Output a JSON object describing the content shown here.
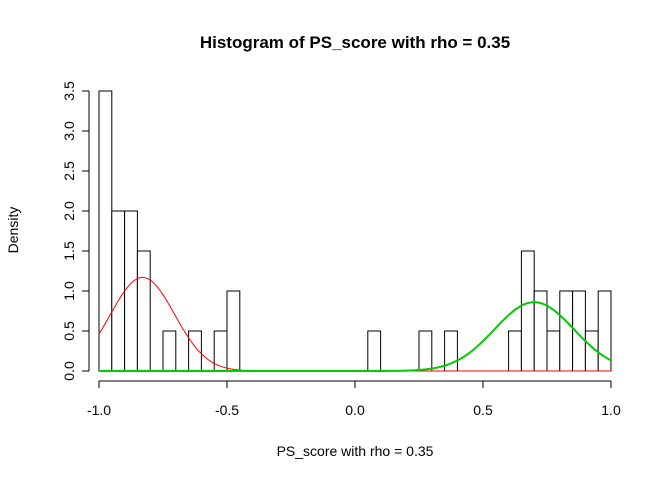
{
  "chart_data": {
    "type": "bar",
    "title": "Histogram of PS_score with rho = 0.35",
    "xlabel": "PS_score with rho = 0.35",
    "ylabel": "Density",
    "xlim": [
      -1.0,
      1.0
    ],
    "ylim": [
      0,
      3.5
    ],
    "x_ticks": [
      -1.0,
      -0.5,
      0.0,
      0.5,
      1.0
    ],
    "x_tick_labels": [
      "-1.0",
      "-0.5",
      "0.0",
      "0.5",
      "1.0"
    ],
    "y_ticks": [
      0.0,
      0.5,
      1.0,
      1.5,
      2.0,
      2.5,
      3.0,
      3.5
    ],
    "y_tick_labels": [
      "0.0",
      "0.5",
      "1.0",
      "1.5",
      "2.0",
      "2.5",
      "3.0",
      "3.5"
    ],
    "bin_width": 0.05,
    "bins": [
      {
        "left": -1.0,
        "right": -0.95,
        "density": 3.5
      },
      {
        "left": -0.95,
        "right": -0.9,
        "density": 2.0
      },
      {
        "left": -0.9,
        "right": -0.85,
        "density": 2.0
      },
      {
        "left": -0.85,
        "right": -0.8,
        "density": 1.5
      },
      {
        "left": -0.75,
        "right": -0.7,
        "density": 0.5
      },
      {
        "left": -0.65,
        "right": -0.6,
        "density": 0.5
      },
      {
        "left": -0.55,
        "right": -0.5,
        "density": 0.5
      },
      {
        "left": -0.5,
        "right": -0.45,
        "density": 1.0
      },
      {
        "left": 0.05,
        "right": 0.1,
        "density": 0.5
      },
      {
        "left": 0.25,
        "right": 0.3,
        "density": 0.5
      },
      {
        "left": 0.35,
        "right": 0.4,
        "density": 0.5
      },
      {
        "left": 0.6,
        "right": 0.65,
        "density": 0.5
      },
      {
        "left": 0.65,
        "right": 0.7,
        "density": 1.5
      },
      {
        "left": 0.7,
        "right": 0.75,
        "density": 1.0
      },
      {
        "left": 0.75,
        "right": 0.8,
        "density": 0.5
      },
      {
        "left": 0.8,
        "right": 0.85,
        "density": 1.0
      },
      {
        "left": 0.85,
        "right": 0.9,
        "density": 1.0
      },
      {
        "left": 0.9,
        "right": 0.95,
        "density": 0.5
      },
      {
        "left": 0.95,
        "right": 1.0,
        "density": 1.0
      }
    ],
    "curves": [
      {
        "color": "#ff0000",
        "mean": -0.83,
        "sd": 0.125,
        "peak": 1.17,
        "x_range": [
          -1.0,
          1.0
        ],
        "stroke": 1
      },
      {
        "color": "#00cc00",
        "mean": 0.7,
        "sd": 0.155,
        "peak": 0.86,
        "x_range": [
          -1.0,
          1.0
        ],
        "stroke": 2
      }
    ]
  }
}
